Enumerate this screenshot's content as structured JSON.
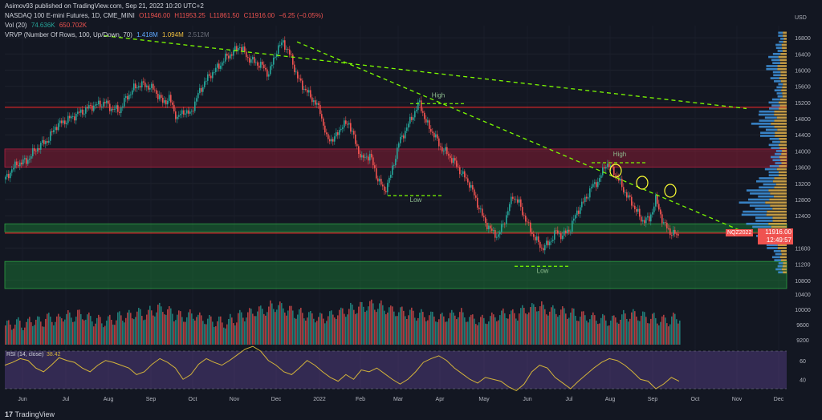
{
  "header": {
    "published": "Asimov93 published on TradingView.com, Sep 21, 2022 10:20 UTC+2",
    "title": "NASDAQ 100 E-mini Futures, 1D, CME_MINI",
    "open": "O11946.00",
    "high": "H11953.25",
    "low": "L11861.50",
    "close": "C11916.00",
    "change": "−6.25 (−0.05%)",
    "vol_label": "Vol (20)",
    "vol_a": "74.636K",
    "vol_b": "650.702K",
    "vrvp_label": "VRVP (Number Of Rows, 100, Up/Down, 70)",
    "vrvp_a": "1.418M",
    "vrvp_b": "1.094M",
    "vrvp_c": "2.512M"
  },
  "rsi_label": "RSI (14, close)",
  "rsi_value": "38.42",
  "price_tag": {
    "contract": "NQZ2022",
    "price": "11916.00",
    "timer": "12:49:57"
  },
  "footer": "TradingView",
  "colors": {
    "up": "#26a69a",
    "down": "#ef5350",
    "trend": "#7cfc00",
    "resistance": "#ff2a2a",
    "annot": "#ffff33"
  },
  "chart_data": {
    "type": "candlestick",
    "currency": "USD",
    "y_ticks": [
      16800,
      16400,
      16000,
      15600,
      15200,
      14800,
      14400,
      14000,
      13600,
      13200,
      12800,
      12400,
      11600,
      11200,
      10800
    ],
    "ylim": [
      10500,
      17100
    ],
    "x_ticks": [
      "Jun",
      "Jul",
      "Aug",
      "Sep",
      "Oct",
      "Nov",
      "Dec",
      "2022",
      "Feb",
      "Mar",
      "Apr",
      "May",
      "Jun",
      "Jul",
      "Aug",
      "Sep",
      "Oct",
      "Nov",
      "Dec"
    ],
    "volume_ticks": [
      10400,
      10000,
      9600,
      9200
    ],
    "rsi_ticks": [
      60,
      40
    ],
    "price_path": [
      [
        0,
        13300
      ],
      [
        4,
        13550
      ],
      [
        8,
        13700
      ],
      [
        13,
        13750
      ],
      [
        18,
        14000
      ],
      [
        22,
        14150
      ],
      [
        27,
        14300
      ],
      [
        31,
        14600
      ],
      [
        35,
        14700
      ],
      [
        40,
        14800
      ],
      [
        44,
        14900
      ],
      [
        49,
        15000
      ],
      [
        53,
        15100
      ],
      [
        58,
        15150
      ],
      [
        62,
        15200
      ],
      [
        66,
        15050
      ],
      [
        71,
        15000
      ],
      [
        75,
        15300
      ],
      [
        80,
        15550
      ],
      [
        84,
        15650
      ],
      [
        89,
        15600
      ],
      [
        93,
        15500
      ],
      [
        98,
        15200
      ],
      [
        102,
        15300
      ],
      [
        107,
        14800
      ],
      [
        111,
        15000
      ],
      [
        115,
        14900
      ],
      [
        120,
        15400
      ],
      [
        124,
        15700
      ],
      [
        128,
        15900
      ],
      [
        133,
        16100
      ],
      [
        137,
        16300
      ],
      [
        142,
        16450
      ],
      [
        146,
        16600
      ],
      [
        151,
        16300
      ],
      [
        155,
        16200
      ],
      [
        160,
        16100
      ],
      [
        164,
        15900
      ],
      [
        169,
        16500
      ],
      [
        173,
        16700
      ],
      [
        178,
        16300
      ],
      [
        182,
        15800
      ],
      [
        187,
        15500
      ],
      [
        191,
        15300
      ],
      [
        196,
        15000
      ],
      [
        200,
        14300
      ],
      [
        205,
        14300
      ],
      [
        209,
        14600
      ],
      [
        214,
        14700
      ],
      [
        218,
        14200
      ],
      [
        222,
        13800
      ],
      [
        227,
        13900
      ],
      [
        231,
        13400
      ],
      [
        236,
        13000
      ],
      [
        240,
        13400
      ],
      [
        245,
        14200
      ],
      [
        249,
        14500
      ],
      [
        254,
        14900
      ],
      [
        258,
        15200
      ],
      [
        262,
        14700
      ],
      [
        267,
        14400
      ],
      [
        271,
        14100
      ],
      [
        276,
        13900
      ],
      [
        280,
        13700
      ],
      [
        285,
        13400
      ],
      [
        289,
        13200
      ],
      [
        294,
        12700
      ],
      [
        298,
        12300
      ],
      [
        303,
        12000
      ],
      [
        307,
        11900
      ],
      [
        312,
        12400
      ],
      [
        316,
        12900
      ],
      [
        320,
        12700
      ],
      [
        325,
        12200
      ],
      [
        329,
        11900
      ],
      [
        334,
        11600
      ],
      [
        338,
        11700
      ],
      [
        343,
        12000
      ],
      [
        347,
        11900
      ],
      [
        352,
        12100
      ],
      [
        356,
        12500
      ],
      [
        361,
        12800
      ],
      [
        365,
        13100
      ],
      [
        370,
        13300
      ],
      [
        374,
        13700
      ],
      [
        379,
        13500
      ],
      [
        383,
        13200
      ],
      [
        387,
        12900
      ],
      [
        392,
        12600
      ],
      [
        396,
        12300
      ],
      [
        401,
        12300
      ],
      [
        405,
        12800
      ],
      [
        410,
        12200
      ],
      [
        414,
        12000
      ],
      [
        419,
        11900
      ]
    ],
    "horizontal_lines": [
      15080,
      11970
    ],
    "zones": [
      {
        "from": 13600,
        "to": 14050,
        "color": "red"
      },
      {
        "from": 12000,
        "to": 12200,
        "color": "green"
      },
      {
        "from": 10600,
        "to": 11270,
        "color": "green"
      }
    ],
    "trendlines": [
      [
        [
          62,
          16850
        ],
        [
          462,
          15050
        ]
      ],
      [
        [
          182,
          16700
        ],
        [
          462,
          11970
        ]
      ]
    ],
    "annotations": [
      {
        "text": "High",
        "bar": 270,
        "price": 15330
      },
      {
        "text": "Low",
        "bar": 256,
        "price": 12740
      },
      {
        "text": "High",
        "bar": 383,
        "price": 13870
      },
      {
        "text": "Low",
        "bar": 335,
        "price": 10990
      }
    ],
    "rsi": [
      55,
      58,
      62,
      60,
      52,
      48,
      55,
      63,
      60,
      58,
      52,
      48,
      55,
      60,
      58,
      55,
      52,
      45,
      48,
      56,
      62,
      58,
      52,
      40,
      45,
      56,
      62,
      58,
      55,
      60,
      66,
      72,
      75,
      70,
      60,
      55,
      48,
      45,
      52,
      60,
      55,
      48,
      42,
      38,
      45,
      40,
      50,
      48,
      52,
      46,
      40,
      35,
      40,
      48,
      58,
      62,
      65,
      60,
      52,
      46,
      40,
      36,
      42,
      40,
      38,
      32,
      28,
      35,
      48,
      55,
      52,
      42,
      36,
      30,
      38,
      45,
      52,
      58,
      62,
      60,
      55,
      48,
      40,
      38,
      30,
      35,
      42,
      38
    ],
    "volume": [
      40,
      45,
      42,
      50,
      48,
      55,
      52,
      60,
      58,
      62,
      55,
      50,
      48,
      52,
      58,
      60,
      65,
      62,
      70,
      75,
      68,
      60,
      58,
      62,
      55,
      50,
      48,
      45,
      52,
      60,
      65,
      70,
      72,
      80,
      78,
      70,
      65,
      62,
      58,
      55,
      60,
      65,
      70,
      75,
      78,
      82,
      80,
      75,
      70,
      68,
      65,
      62,
      60,
      58,
      55,
      60,
      65,
      58,
      52,
      50,
      55,
      60,
      65,
      62,
      70,
      75,
      80,
      72,
      70,
      68,
      65,
      60,
      58,
      55,
      52,
      50,
      55,
      60,
      62,
      58,
      55,
      52,
      50,
      55,
      60
    ]
  }
}
